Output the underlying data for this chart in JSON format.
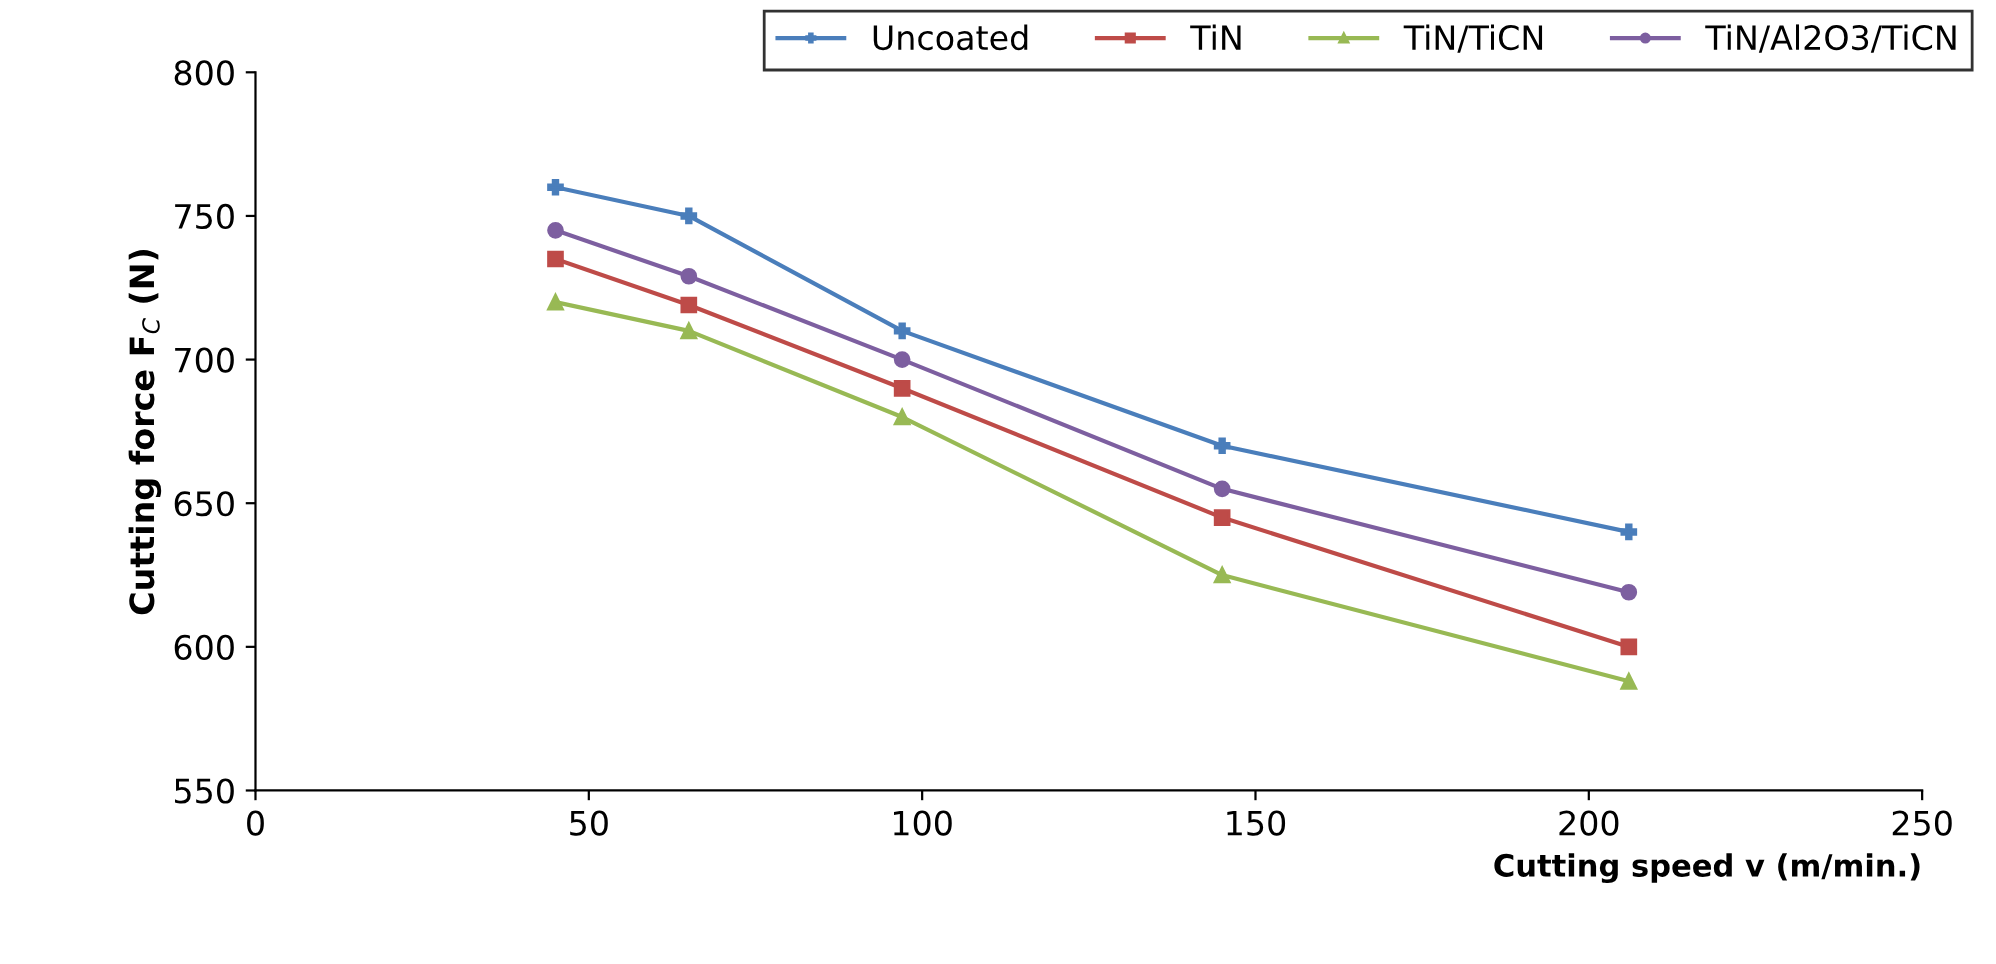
{
  "chart_data": {
    "type": "line",
    "xlabel": "Cutting speed v (m/min.)",
    "ylabel": "Cutting force F$_{C}$ (N)",
    "x": [
      45,
      65,
      97,
      145,
      206
    ],
    "series": [
      {
        "name": "Uncoated",
        "color": "#4a7ebb",
        "marker": "cross",
        "values": [
          760,
          750,
          710,
          670,
          640
        ]
      },
      {
        "name": "TiN",
        "color": "#be4b48",
        "marker": "square",
        "values": [
          735,
          719,
          690,
          645,
          600
        ]
      },
      {
        "name": "TiN/TiCN",
        "color": "#98b954",
        "marker": "triangle",
        "values": [
          720,
          710,
          680,
          625,
          588
        ]
      },
      {
        "name": "TiN/Al2O3/TiCN",
        "color": "#7d5fa0",
        "marker": "circle",
        "values": [
          745,
          729,
          700,
          655,
          619
        ]
      }
    ],
    "xlim": [
      0,
      250
    ],
    "xticks": [
      0,
      50,
      100,
      150,
      200,
      250
    ],
    "ylim": [
      550,
      800
    ],
    "yticks": [
      550,
      600,
      650,
      700,
      750,
      800
    ],
    "grid": false,
    "legend": "top right",
    "line_style": "solid"
  }
}
